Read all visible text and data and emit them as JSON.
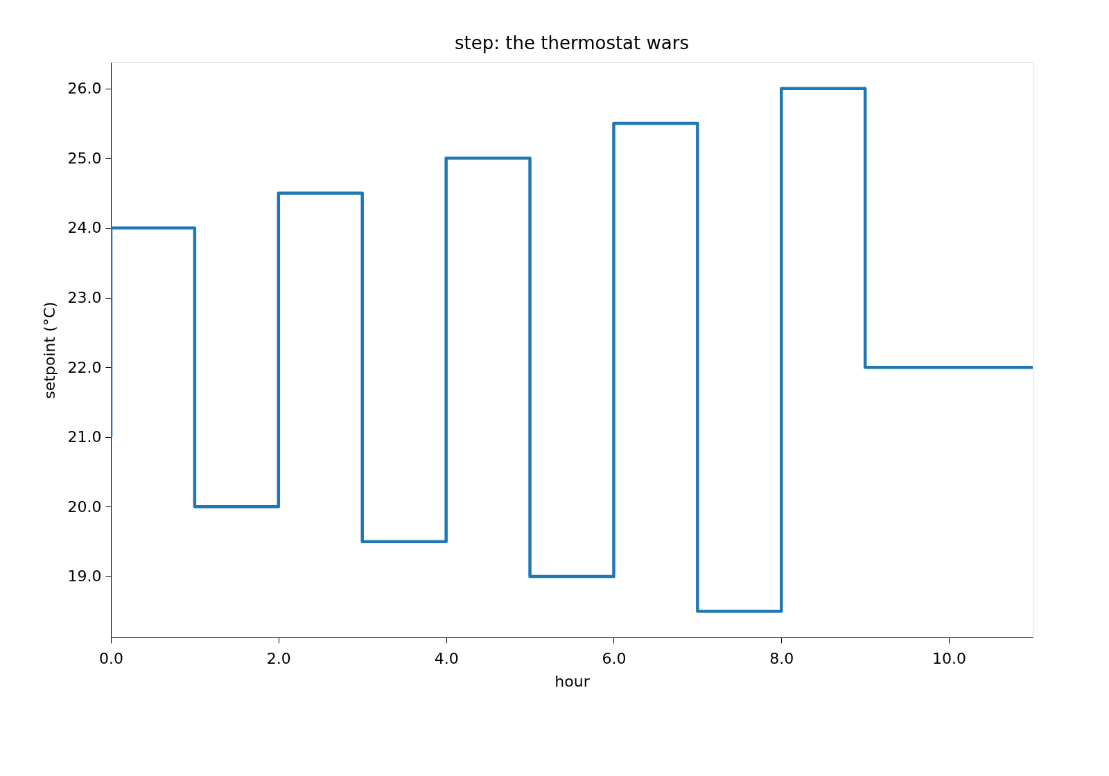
{
  "chart_data": {
    "type": "step",
    "title": "step: the thermostat wars",
    "xlabel": "hour",
    "ylabel": "setpoint (°C)",
    "x": [
      0,
      1,
      2,
      3,
      4,
      5,
      6,
      7,
      8,
      9,
      10,
      11
    ],
    "series": [
      {
        "color": "#1f77b4",
        "values": [
          21,
          24,
          20,
          24.5,
          19.5,
          25,
          19,
          25.5,
          18.5,
          26,
          22,
          22
        ]
      }
    ],
    "xlim": [
      0,
      11
    ],
    "ylim": [
      18.125,
      26.375
    ],
    "xticks": [
      {
        "value": 0,
        "label": "0.0"
      },
      {
        "value": 2,
        "label": "2.0"
      },
      {
        "value": 4,
        "label": "4.0"
      },
      {
        "value": 6,
        "label": "6.0"
      },
      {
        "value": 8,
        "label": "8.0"
      },
      {
        "value": 10,
        "label": "10.0"
      }
    ],
    "yticks": [
      {
        "value": 19,
        "label": "19.0"
      },
      {
        "value": 20,
        "label": "20.0"
      },
      {
        "value": 21,
        "label": "21.0"
      },
      {
        "value": 22,
        "label": "22.0"
      },
      {
        "value": 23,
        "label": "23.0"
      },
      {
        "value": 24,
        "label": "24.0"
      },
      {
        "value": 25,
        "label": "25.0"
      },
      {
        "value": 26,
        "label": "26.0"
      }
    ],
    "grid": false,
    "marker": "none",
    "line_style": "solid"
  }
}
